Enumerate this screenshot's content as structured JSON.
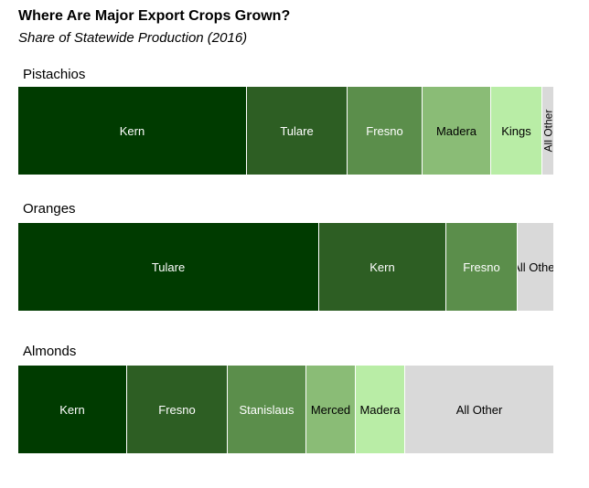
{
  "title": "Where Are Major Export Crops Grown?",
  "subtitle": "Share of Statewide Production (2016)",
  "colors": {
    "level1": "#003b00",
    "level2": "#2d5e23",
    "level3": "#5b8e4b",
    "level4": "#8abc76",
    "level5": "#b9eda6",
    "other": "#d9d9d9"
  },
  "chart_data": {
    "type": "bar",
    "subtype": "100%-stacked-horizontal",
    "title": "Where Are Major Export Crops Grown?",
    "subtitle": "Share of Statewide Production (2016)",
    "unit": "percent of statewide production",
    "charts": [
      {
        "name": "Pistachios",
        "segments": [
          {
            "label": "Kern",
            "value": 42.7,
            "color": "level1"
          },
          {
            "label": "Tulare",
            "value": 18.8,
            "color": "level2"
          },
          {
            "label": "Fresno",
            "value": 14.0,
            "color": "level3"
          },
          {
            "label": "Madera",
            "value": 12.8,
            "color": "level4"
          },
          {
            "label": "Kings",
            "value": 9.6,
            "color": "level5"
          },
          {
            "label": "All Other",
            "value": 2.1,
            "color": "other"
          }
        ]
      },
      {
        "name": "Oranges",
        "segments": [
          {
            "label": "Tulare",
            "value": 56.2,
            "color": "level1"
          },
          {
            "label": "Kern",
            "value": 23.8,
            "color": "level2"
          },
          {
            "label": "Fresno",
            "value": 13.3,
            "color": "level3"
          },
          {
            "label": "All Other",
            "value": 6.7,
            "color": "other"
          }
        ]
      },
      {
        "name": "Almonds",
        "segments": [
          {
            "label": "Kern",
            "value": 20.4,
            "color": "level1"
          },
          {
            "label": "Fresno",
            "value": 18.8,
            "color": "level2"
          },
          {
            "label": "Stanislaus",
            "value": 14.7,
            "color": "level3"
          },
          {
            "label": "Merced",
            "value": 9.2,
            "color": "level4"
          },
          {
            "label": "Madera",
            "value": 9.2,
            "color": "level5"
          },
          {
            "label": "All Other",
            "value": 27.7,
            "color": "other"
          }
        ]
      }
    ]
  }
}
